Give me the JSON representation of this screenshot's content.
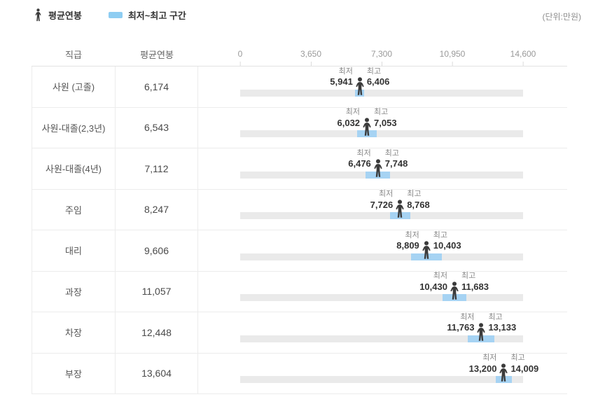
{
  "legend": {
    "avg_label": "평균연봉",
    "range_label": "최저~최고 구간"
  },
  "unit_note": "(단위:만원)",
  "table": {
    "position_header": "직급",
    "avg_header": "평균연봉"
  },
  "labels": {
    "min": "최저",
    "max": "최고"
  },
  "colors": {
    "range": "#a6d3f3",
    "legend_swatch": "#8ecdf2",
    "track": "#eaeaea",
    "person": "#3b3b3b"
  },
  "chart_data": {
    "type": "range-bar",
    "orientation": "horizontal",
    "unit": "만원",
    "legend": [
      "평균연봉",
      "최저~최고 구간"
    ],
    "categories": [
      "사원 (고졸)",
      "사원-대졸(2,3년)",
      "사원-대졸(4년)",
      "주임",
      "대리",
      "과장",
      "차장",
      "부장"
    ],
    "series": [
      {
        "name": "평균연봉",
        "values": [
          6174,
          6543,
          7112,
          8247,
          9606,
          11057,
          12448,
          13604
        ]
      },
      {
        "name": "최저",
        "values": [
          5941,
          6032,
          6476,
          7726,
          8809,
          10430,
          11763,
          13200
        ]
      },
      {
        "name": "최고",
        "values": [
          6406,
          7053,
          7748,
          8768,
          10403,
          11683,
          13133,
          14009
        ]
      }
    ],
    "xlim": [
      0,
      14600
    ],
    "x_ticks": [
      0,
      3650,
      7300,
      10950,
      14600
    ]
  }
}
